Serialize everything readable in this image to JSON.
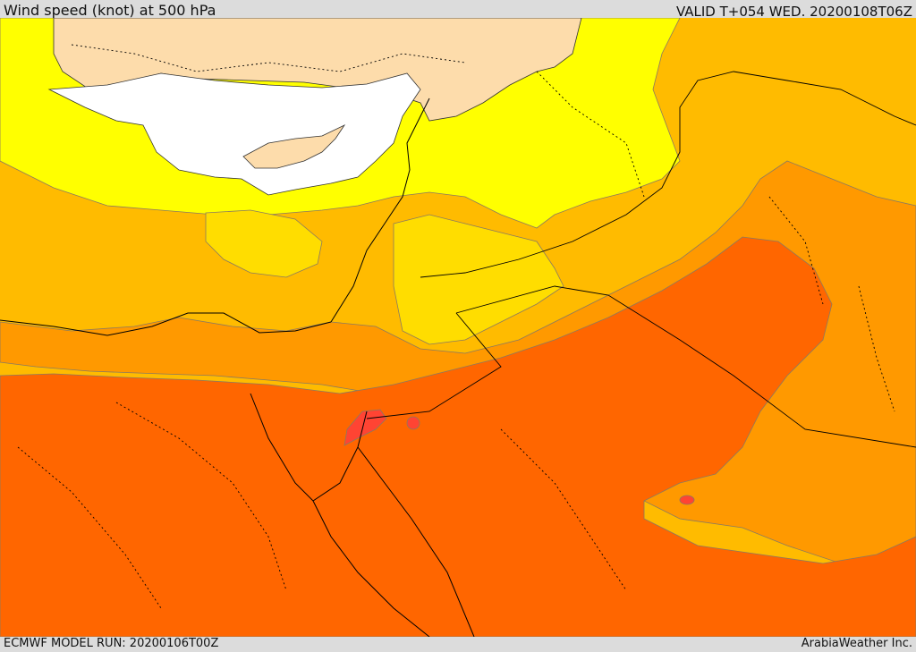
{
  "header": {
    "title": "Wind speed (knot) at 500 hPa",
    "valid": "VALID T+054 WED. 20200108T06Z"
  },
  "footer": {
    "model_run": "ECMWF MODEL RUN: 20200106T00Z",
    "credit": "ArabiaWeather Inc."
  },
  "map": {
    "colors": {
      "land_mask": "#fddcab",
      "calm_white": "#ffffff",
      "band_yellow": "#ffff00",
      "band_gold": "#ffdd00",
      "band_amber": "#ffbb00",
      "band_orange": "#ff9900",
      "band_deep_orange": "#ff6600",
      "band_red": "#ff4433"
    }
  }
}
